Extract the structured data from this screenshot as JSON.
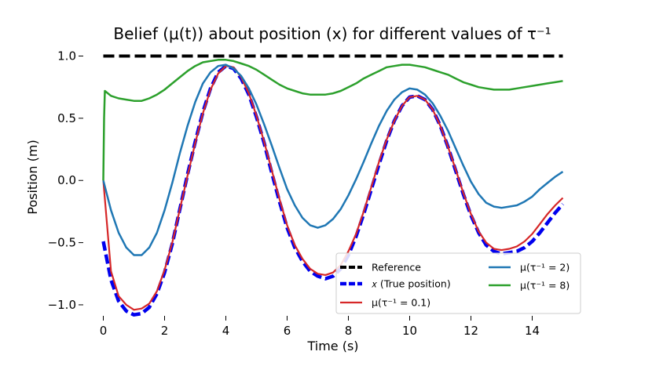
{
  "chart_data": {
    "type": "line",
    "title": "Belief (μ(t)) about position (x) for different values of τ⁻¹",
    "xlabel": "Time (s)",
    "ylabel": "Position (m)",
    "xlim": [
      -0.5,
      15.5
    ],
    "ylim": [
      -1.12,
      1.06
    ],
    "xticks": [
      0,
      2,
      4,
      6,
      8,
      10,
      12,
      14
    ],
    "xtick_labels": [
      "0",
      "2",
      "4",
      "6",
      "8",
      "10",
      "12",
      "14"
    ],
    "yticks": [
      -1.0,
      -0.5,
      0.0,
      0.5,
      1.0
    ],
    "ytick_labels": [
      "−1.0",
      "−0.5",
      "0.0",
      "0.5",
      "1.0"
    ],
    "grid": false,
    "legend_position": "lower-right",
    "legend_columns": 2,
    "x": [
      0,
      0.25,
      0.5,
      0.75,
      1.0,
      1.25,
      1.5,
      1.75,
      2.0,
      2.25,
      2.5,
      2.75,
      3.0,
      3.25,
      3.5,
      3.75,
      4.0,
      4.25,
      4.5,
      4.75,
      5.0,
      5.25,
      5.5,
      5.75,
      6.0,
      6.25,
      6.5,
      6.75,
      7.0,
      7.25,
      7.5,
      7.75,
      8.0,
      8.25,
      8.5,
      8.75,
      9.0,
      9.25,
      9.5,
      9.75,
      10.0,
      10.25,
      10.5,
      10.75,
      11.0,
      11.25,
      11.5,
      11.75,
      12.0,
      12.25,
      12.5,
      12.75,
      13.0,
      13.25,
      13.5,
      13.75,
      14.0,
      14.25,
      14.5,
      14.75,
      15.0
    ],
    "series": [
      {
        "name": "Reference",
        "legend_label": "Reference",
        "color": "#000000",
        "dash": "dashed",
        "values": [
          1,
          1,
          1,
          1,
          1,
          1,
          1,
          1,
          1,
          1,
          1,
          1,
          1,
          1,
          1,
          1,
          1,
          1,
          1,
          1,
          1,
          1,
          1,
          1,
          1,
          1,
          1,
          1,
          1,
          1,
          1,
          1,
          1,
          1,
          1,
          1,
          1,
          1,
          1,
          1,
          1,
          1,
          1,
          1,
          1,
          1,
          1,
          1,
          1,
          1,
          1,
          1,
          1,
          1,
          1,
          1,
          1,
          1,
          1,
          1,
          1
        ]
      },
      {
        "name": "x (True position)",
        "legend_label": "𝑥 (True position)",
        "color": "#0000ee",
        "dash": "dashed",
        "values": [
          -0.49,
          -0.8,
          -0.97,
          -1.05,
          -1.08,
          -1.07,
          -1.02,
          -0.91,
          -0.74,
          -0.51,
          -0.23,
          0.05,
          0.31,
          0.55,
          0.74,
          0.87,
          0.92,
          0.9,
          0.82,
          0.69,
          0.51,
          0.3,
          0.06,
          -0.17,
          -0.38,
          -0.54,
          -0.65,
          -0.73,
          -0.77,
          -0.79,
          -0.77,
          -0.71,
          -0.6,
          -0.45,
          -0.27,
          -0.07,
          0.13,
          0.32,
          0.48,
          0.6,
          0.67,
          0.68,
          0.65,
          0.57,
          0.44,
          0.27,
          0.08,
          -0.11,
          -0.28,
          -0.42,
          -0.52,
          -0.57,
          -0.59,
          -0.58,
          -0.57,
          -0.54,
          -0.49,
          -0.42,
          -0.34,
          -0.26,
          -0.19
        ]
      },
      {
        "name": "mu tau^-1 = 0.1",
        "legend_label": "μ(τ⁻¹ = 0.1)",
        "color": "#d62728",
        "dash": "solid",
        "values": [
          0.0,
          -0.73,
          -0.93,
          -1.0,
          -1.04,
          -1.03,
          -0.99,
          -0.89,
          -0.72,
          -0.5,
          -0.23,
          0.04,
          0.3,
          0.54,
          0.73,
          0.86,
          0.92,
          0.91,
          0.83,
          0.7,
          0.52,
          0.31,
          0.08,
          -0.15,
          -0.36,
          -0.52,
          -0.63,
          -0.71,
          -0.75,
          -0.76,
          -0.74,
          -0.68,
          -0.57,
          -0.43,
          -0.25,
          -0.05,
          0.15,
          0.33,
          0.48,
          0.6,
          0.67,
          0.68,
          0.65,
          0.57,
          0.44,
          0.27,
          0.09,
          -0.1,
          -0.27,
          -0.41,
          -0.5,
          -0.55,
          -0.56,
          -0.55,
          -0.53,
          -0.49,
          -0.43,
          -0.35,
          -0.27,
          -0.2,
          -0.14
        ]
      },
      {
        "name": "mu tau^-1 = 2",
        "legend_label": "μ(τ⁻¹ = 2)",
        "color": "#1f77b4",
        "dash": "solid",
        "values": [
          0.0,
          -0.24,
          -0.42,
          -0.54,
          -0.6,
          -0.6,
          -0.54,
          -0.42,
          -0.24,
          -0.02,
          0.22,
          0.44,
          0.63,
          0.78,
          0.87,
          0.92,
          0.93,
          0.9,
          0.84,
          0.74,
          0.61,
          0.45,
          0.28,
          0.1,
          -0.07,
          -0.2,
          -0.3,
          -0.36,
          -0.38,
          -0.36,
          -0.31,
          -0.23,
          -0.12,
          0.01,
          0.15,
          0.3,
          0.44,
          0.56,
          0.65,
          0.71,
          0.74,
          0.73,
          0.69,
          0.62,
          0.52,
          0.4,
          0.26,
          0.12,
          -0.01,
          -0.11,
          -0.18,
          -0.21,
          -0.22,
          -0.21,
          -0.2,
          -0.17,
          -0.13,
          -0.07,
          -0.02,
          0.03,
          0.07
        ]
      },
      {
        "name": "mu tau^-1 = 8",
        "legend_label": "μ(τ⁻¹ = 8)",
        "color": "#2ca02c",
        "dash": "solid",
        "values": [
          0.72,
          0.68,
          0.66,
          0.65,
          0.64,
          0.64,
          0.66,
          0.69,
          0.73,
          0.78,
          0.83,
          0.88,
          0.92,
          0.95,
          0.96,
          0.97,
          0.97,
          0.96,
          0.94,
          0.92,
          0.89,
          0.85,
          0.81,
          0.77,
          0.74,
          0.72,
          0.7,
          0.69,
          0.69,
          0.69,
          0.7,
          0.72,
          0.75,
          0.78,
          0.82,
          0.85,
          0.88,
          0.91,
          0.92,
          0.93,
          0.93,
          0.92,
          0.91,
          0.89,
          0.87,
          0.85,
          0.82,
          0.79,
          0.77,
          0.75,
          0.74,
          0.73,
          0.73,
          0.73,
          0.74,
          0.75,
          0.76,
          0.77,
          0.78,
          0.79,
          0.8
        ]
      }
    ]
  }
}
